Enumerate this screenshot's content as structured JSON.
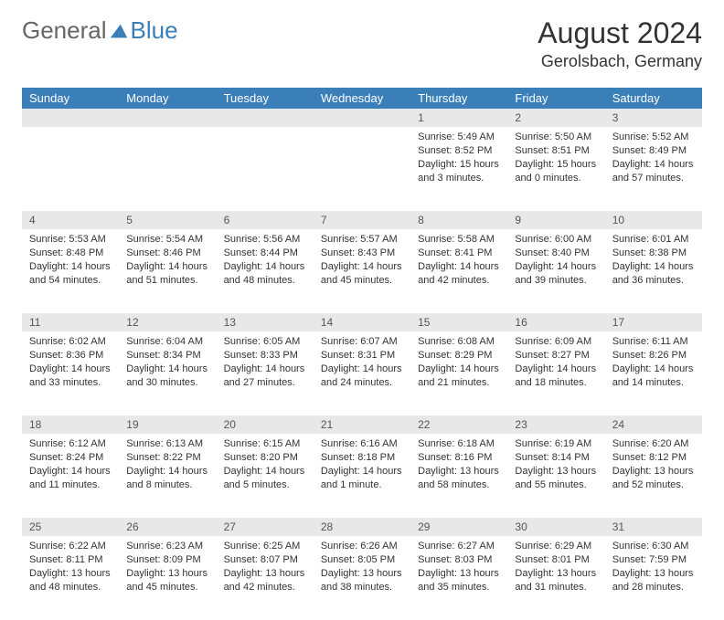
{
  "logo": {
    "part1": "General",
    "part2": "Blue"
  },
  "title": "August 2024",
  "subtitle": "Gerolsbach, Germany",
  "colors": {
    "header_bg": "#3b7fb8",
    "header_fg": "#ffffff",
    "daynum_bg": "#e8e8e8",
    "page_bg": "#ffffff",
    "text": "#333333",
    "logo_gray": "#666666",
    "logo_blue": "#3b7fb8"
  },
  "weekdays": [
    "Sunday",
    "Monday",
    "Tuesday",
    "Wednesday",
    "Thursday",
    "Friday",
    "Saturday"
  ],
  "weeks": [
    [
      null,
      null,
      null,
      null,
      {
        "n": "1",
        "sr": "5:49 AM",
        "ss": "8:52 PM",
        "dl": "15 hours and 3 minutes."
      },
      {
        "n": "2",
        "sr": "5:50 AM",
        "ss": "8:51 PM",
        "dl": "15 hours and 0 minutes."
      },
      {
        "n": "3",
        "sr": "5:52 AM",
        "ss": "8:49 PM",
        "dl": "14 hours and 57 minutes."
      }
    ],
    [
      {
        "n": "4",
        "sr": "5:53 AM",
        "ss": "8:48 PM",
        "dl": "14 hours and 54 minutes."
      },
      {
        "n": "5",
        "sr": "5:54 AM",
        "ss": "8:46 PM",
        "dl": "14 hours and 51 minutes."
      },
      {
        "n": "6",
        "sr": "5:56 AM",
        "ss": "8:44 PM",
        "dl": "14 hours and 48 minutes."
      },
      {
        "n": "7",
        "sr": "5:57 AM",
        "ss": "8:43 PM",
        "dl": "14 hours and 45 minutes."
      },
      {
        "n": "8",
        "sr": "5:58 AM",
        "ss": "8:41 PM",
        "dl": "14 hours and 42 minutes."
      },
      {
        "n": "9",
        "sr": "6:00 AM",
        "ss": "8:40 PM",
        "dl": "14 hours and 39 minutes."
      },
      {
        "n": "10",
        "sr": "6:01 AM",
        "ss": "8:38 PM",
        "dl": "14 hours and 36 minutes."
      }
    ],
    [
      {
        "n": "11",
        "sr": "6:02 AM",
        "ss": "8:36 PM",
        "dl": "14 hours and 33 minutes."
      },
      {
        "n": "12",
        "sr": "6:04 AM",
        "ss": "8:34 PM",
        "dl": "14 hours and 30 minutes."
      },
      {
        "n": "13",
        "sr": "6:05 AM",
        "ss": "8:33 PM",
        "dl": "14 hours and 27 minutes."
      },
      {
        "n": "14",
        "sr": "6:07 AM",
        "ss": "8:31 PM",
        "dl": "14 hours and 24 minutes."
      },
      {
        "n": "15",
        "sr": "6:08 AM",
        "ss": "8:29 PM",
        "dl": "14 hours and 21 minutes."
      },
      {
        "n": "16",
        "sr": "6:09 AM",
        "ss": "8:27 PM",
        "dl": "14 hours and 18 minutes."
      },
      {
        "n": "17",
        "sr": "6:11 AM",
        "ss": "8:26 PM",
        "dl": "14 hours and 14 minutes."
      }
    ],
    [
      {
        "n": "18",
        "sr": "6:12 AM",
        "ss": "8:24 PM",
        "dl": "14 hours and 11 minutes."
      },
      {
        "n": "19",
        "sr": "6:13 AM",
        "ss": "8:22 PM",
        "dl": "14 hours and 8 minutes."
      },
      {
        "n": "20",
        "sr": "6:15 AM",
        "ss": "8:20 PM",
        "dl": "14 hours and 5 minutes."
      },
      {
        "n": "21",
        "sr": "6:16 AM",
        "ss": "8:18 PM",
        "dl": "14 hours and 1 minute."
      },
      {
        "n": "22",
        "sr": "6:18 AM",
        "ss": "8:16 PM",
        "dl": "13 hours and 58 minutes."
      },
      {
        "n": "23",
        "sr": "6:19 AM",
        "ss": "8:14 PM",
        "dl": "13 hours and 55 minutes."
      },
      {
        "n": "24",
        "sr": "6:20 AM",
        "ss": "8:12 PM",
        "dl": "13 hours and 52 minutes."
      }
    ],
    [
      {
        "n": "25",
        "sr": "6:22 AM",
        "ss": "8:11 PM",
        "dl": "13 hours and 48 minutes."
      },
      {
        "n": "26",
        "sr": "6:23 AM",
        "ss": "8:09 PM",
        "dl": "13 hours and 45 minutes."
      },
      {
        "n": "27",
        "sr": "6:25 AM",
        "ss": "8:07 PM",
        "dl": "13 hours and 42 minutes."
      },
      {
        "n": "28",
        "sr": "6:26 AM",
        "ss": "8:05 PM",
        "dl": "13 hours and 38 minutes."
      },
      {
        "n": "29",
        "sr": "6:27 AM",
        "ss": "8:03 PM",
        "dl": "13 hours and 35 minutes."
      },
      {
        "n": "30",
        "sr": "6:29 AM",
        "ss": "8:01 PM",
        "dl": "13 hours and 31 minutes."
      },
      {
        "n": "31",
        "sr": "6:30 AM",
        "ss": "7:59 PM",
        "dl": "13 hours and 28 minutes."
      }
    ]
  ],
  "labels": {
    "sunrise": "Sunrise: ",
    "sunset": "Sunset: ",
    "daylight": "Daylight: "
  }
}
